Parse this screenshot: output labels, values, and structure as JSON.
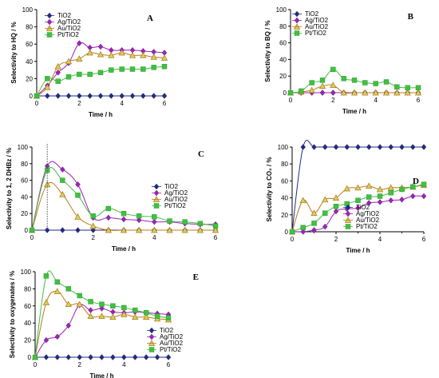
{
  "colors": {
    "TiO2": "#1f2a8c",
    "Ag/TiO2": "#a020c0",
    "Au/TiO2": "#c07820",
    "Pt/TiO2": "#40c040"
  },
  "chart_data": [
    {
      "id": "A",
      "type": "line",
      "panel_label": "A",
      "xlabel": "Time / h",
      "ylabel": "Selectivity to HQ / %",
      "xlim": [
        0,
        6
      ],
      "ylim": [
        0,
        100
      ],
      "xticks": [
        0,
        2,
        4,
        6
      ],
      "yticks": [
        0,
        20,
        40,
        60,
        80,
        100
      ],
      "legend_position": "top-left",
      "grid": false,
      "series": [
        {
          "name": "TiO2",
          "marker": "diamond",
          "x": [
            0,
            0.5,
            1,
            1.5,
            2,
            2.5,
            3,
            3.5,
            4,
            4.5,
            5,
            5.5,
            6
          ],
          "y": [
            0,
            0,
            0,
            0,
            0,
            0,
            0,
            0,
            0,
            0,
            0,
            0,
            0
          ]
        },
        {
          "name": "Ag/TiO2",
          "marker": "diamond",
          "x": [
            0,
            0.5,
            1,
            1.5,
            2,
            2.5,
            3,
            3.5,
            4,
            4.5,
            5,
            5.5,
            6
          ],
          "y": [
            0,
            12,
            27,
            38,
            61,
            56,
            57,
            53,
            53,
            53,
            52,
            51,
            50
          ]
        },
        {
          "name": "Au/TiO2",
          "marker": "triangle",
          "x": [
            0,
            0.5,
            1,
            1.5,
            2,
            2.5,
            3,
            3.5,
            4,
            4.5,
            5,
            5.5,
            6
          ],
          "y": [
            0,
            10,
            34,
            40,
            43,
            50,
            48,
            47,
            50,
            47,
            47,
            45,
            44
          ]
        },
        {
          "name": "Pt/TiO2",
          "marker": "square",
          "x": [
            0,
            0.5,
            1,
            1.5,
            2,
            2.5,
            3,
            3.5,
            4,
            4.5,
            5,
            5.5,
            6
          ],
          "y": [
            0,
            20,
            17,
            22,
            25,
            25,
            27,
            30,
            31,
            31,
            31,
            33,
            34
          ]
        }
      ]
    },
    {
      "id": "B",
      "type": "line",
      "panel_label": "B",
      "xlabel": "Time / h",
      "ylabel": "Selectivity to BQ / %",
      "xlim": [
        0,
        6
      ],
      "ylim": [
        0,
        100
      ],
      "xticks": [
        0,
        2,
        4,
        6
      ],
      "yticks": [
        0,
        20,
        40,
        60,
        80,
        100
      ],
      "legend_position": "top-left",
      "grid": false,
      "series": [
        {
          "name": "TiO2",
          "marker": "diamond",
          "x": [
            0,
            0.5,
            1,
            1.5,
            2,
            2.5,
            3,
            3.5,
            4,
            4.5,
            5,
            5.5,
            6
          ],
          "y": [
            0,
            0,
            0,
            0,
            0,
            0,
            0,
            0,
            0,
            0,
            0,
            0,
            0
          ]
        },
        {
          "name": "Ag/TiO2",
          "marker": "diamond",
          "x": [
            0,
            0.5,
            1,
            1.5,
            2,
            2.5,
            3,
            3.5,
            4,
            4.5,
            5,
            5.5,
            6
          ],
          "y": [
            0,
            0,
            0,
            0,
            0,
            0,
            0,
            0,
            0,
            0,
            0,
            0,
            0
          ]
        },
        {
          "name": "Au/TiO2",
          "marker": "triangle",
          "x": [
            0,
            0.5,
            1,
            1.5,
            2,
            2.5,
            3,
            3.5,
            4,
            4.5,
            5,
            5.5,
            6
          ],
          "y": [
            0,
            1,
            3,
            8,
            9,
            0,
            0,
            0,
            0,
            0,
            0,
            0,
            0
          ]
        },
        {
          "name": "Pt/TiO2",
          "marker": "square",
          "x": [
            0,
            0.5,
            1,
            1.5,
            2,
            2.5,
            3,
            3.5,
            4,
            4.5,
            5,
            5.5,
            6
          ],
          "y": [
            0,
            2,
            12,
            15,
            28,
            17,
            15,
            12,
            11,
            13,
            7,
            6,
            6
          ]
        }
      ]
    },
    {
      "id": "C",
      "type": "line",
      "panel_label": "C",
      "xlabel": "Time / h",
      "ylabel": "Selectivity to 1, 2 DHBz / %",
      "xlim": [
        0,
        6
      ],
      "ylim": [
        0,
        100
      ],
      "xticks": [
        0,
        2,
        4,
        6
      ],
      "yticks": [
        0,
        20,
        40,
        60,
        80,
        100
      ],
      "legend_position": "center-right",
      "grid": false,
      "series": [
        {
          "name": "TiO2",
          "marker": "diamond",
          "x": [
            0,
            0.5,
            1,
            1.5,
            2,
            2.5,
            3,
            3.5,
            4,
            4.5,
            5,
            5.5,
            6
          ],
          "y": [
            0,
            0,
            0,
            0,
            0,
            0,
            0,
            0,
            0,
            0,
            0,
            0,
            0
          ]
        },
        {
          "name": "Ag/TiO2",
          "marker": "diamond",
          "x": [
            0,
            0.5,
            1,
            1.5,
            2,
            2.5,
            3,
            3.5,
            4,
            4.5,
            5,
            5.5,
            6
          ],
          "y": [
            0,
            77,
            73,
            55,
            15,
            15,
            13,
            12,
            10,
            10,
            8,
            7,
            7
          ]
        },
        {
          "name": "Au/TiO2",
          "marker": "triangle",
          "x": [
            0,
            0.5,
            1,
            1.5,
            2,
            2.5,
            3,
            3.5,
            4,
            4.5,
            5,
            5.5,
            6
          ],
          "y": [
            0,
            55,
            43,
            16,
            5,
            0,
            0,
            0,
            0,
            0,
            0,
            0,
            0
          ]
        },
        {
          "name": "Pt/TiO2",
          "marker": "square",
          "x": [
            0,
            0.5,
            1,
            1.5,
            2,
            2.5,
            3,
            3.5,
            4,
            4.5,
            5,
            5.5,
            6
          ],
          "y": [
            0,
            72,
            60,
            42,
            17,
            26,
            20,
            17,
            16,
            11,
            10,
            8,
            5
          ]
        }
      ]
    },
    {
      "id": "D",
      "type": "line",
      "panel_label": "D",
      "xlabel": "Time / h",
      "ylabel": "Selectivity to CO₂ / %",
      "xlim": [
        0,
        6
      ],
      "ylim": [
        0,
        100
      ],
      "xticks": [
        0,
        2,
        4,
        6
      ],
      "yticks": [
        0,
        20,
        40,
        60,
        80,
        100
      ],
      "legend_position": "bottom-right",
      "grid": false,
      "series": [
        {
          "name": "TiO2",
          "marker": "diamond",
          "x": [
            0,
            0.5,
            1,
            1.5,
            2,
            2.5,
            3,
            3.5,
            4,
            4.5,
            5,
            5.5,
            6
          ],
          "y": [
            0,
            100,
            100,
            100,
            100,
            100,
            100,
            100,
            100,
            100,
            100,
            100,
            100
          ]
        },
        {
          "name": "Ag/TiO2",
          "marker": "diamond",
          "x": [
            0,
            0.5,
            1,
            1.5,
            2,
            2.5,
            3,
            3.5,
            4,
            4.5,
            5,
            5.5,
            6
          ],
          "y": [
            0,
            0,
            2,
            6,
            24,
            27,
            28,
            34,
            35,
            37,
            38,
            42,
            42
          ]
        },
        {
          "name": "Au/TiO2",
          "marker": "triangle",
          "x": [
            0,
            0.5,
            1,
            1.5,
            2,
            2.5,
            3,
            3.5,
            4,
            4.5,
            5,
            5.5,
            6
          ],
          "y": [
            0,
            37,
            22,
            38,
            40,
            51,
            52,
            54,
            50,
            52,
            52,
            53,
            55
          ]
        },
        {
          "name": "Pt/TiO2",
          "marker": "square",
          "x": [
            0,
            0.5,
            1,
            1.5,
            2,
            2.5,
            3,
            3.5,
            4,
            4.5,
            5,
            5.5,
            6
          ],
          "y": [
            0,
            5,
            10,
            22,
            30,
            33,
            37,
            41,
            42,
            46,
            50,
            53,
            56
          ]
        }
      ]
    },
    {
      "id": "E",
      "type": "line",
      "panel_label": "E",
      "xlabel": "Time / h",
      "ylabel": "Selectivity to oxygenates / %",
      "xlim": [
        0,
        6
      ],
      "ylim": [
        0,
        100
      ],
      "xticks": [
        0,
        2,
        4,
        6
      ],
      "yticks": [
        0,
        20,
        40,
        60,
        80,
        100
      ],
      "legend_position": "bottom-right",
      "grid": false,
      "series": [
        {
          "name": "TiO2",
          "marker": "diamond",
          "x": [
            0,
            0.5,
            1,
            1.5,
            2,
            2.5,
            3,
            3.5,
            4,
            4.5,
            5,
            5.5,
            6
          ],
          "y": [
            0,
            0,
            0,
            0,
            0,
            0,
            0,
            0,
            0,
            0,
            0,
            0,
            0
          ]
        },
        {
          "name": "Ag/TiO2",
          "marker": "diamond",
          "x": [
            0,
            0.5,
            1,
            1.5,
            2,
            2.5,
            3,
            3.5,
            4,
            4.5,
            5,
            5.5,
            6
          ],
          "y": [
            0,
            20,
            24,
            37,
            61,
            55,
            57,
            53,
            52,
            53,
            52,
            51,
            50
          ]
        },
        {
          "name": "Au/TiO2",
          "marker": "triangle",
          "x": [
            0,
            0.5,
            1,
            1.5,
            2,
            2.5,
            3,
            3.5,
            4,
            4.5,
            5,
            5.5,
            6
          ],
          "y": [
            0,
            64,
            77,
            62,
            62,
            48,
            48,
            47,
            50,
            47,
            47,
            45,
            44
          ]
        },
        {
          "name": "Pt/TiO2",
          "marker": "square",
          "x": [
            0,
            0.5,
            1,
            1.5,
            2,
            2.5,
            3,
            3.5,
            4,
            4.5,
            5,
            5.5,
            6
          ],
          "y": [
            0,
            95,
            88,
            80,
            72,
            65,
            62,
            60,
            58,
            55,
            52,
            48,
            46
          ]
        }
      ]
    }
  ]
}
